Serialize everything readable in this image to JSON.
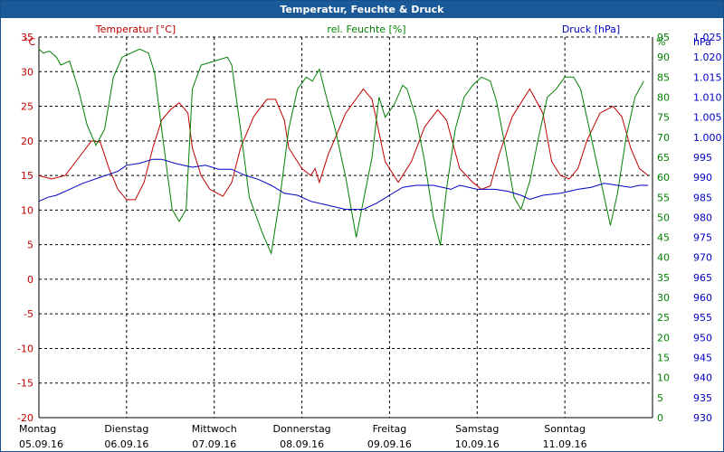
{
  "window": {
    "title": "Temperatur, Feuchte & Druck"
  },
  "chart_data": {
    "type": "line",
    "title": "Temperatur, Feuchte & Druck",
    "grid": true,
    "x": {
      "range": [
        0,
        7
      ],
      "unit": "days from 05.09.16 00:00",
      "tick_labels": [
        {
          "day": "Montag",
          "date": "05.09.16"
        },
        {
          "day": "Dienstag",
          "date": "06.09.16"
        },
        {
          "day": "Mittwoch",
          "date": "07.09.16"
        },
        {
          "day": "Donnerstag",
          "date": "08.09.16"
        },
        {
          "day": "Freitag",
          "date": "09.09.16"
        },
        {
          "day": "Samstag",
          "date": "10.09.16"
        },
        {
          "day": "Sonntag",
          "date": "11.09.16"
        }
      ]
    },
    "axes": {
      "temperature": {
        "label": "Temperatur [°C]",
        "unit": "°C",
        "min": -20,
        "max": 35,
        "step": 5,
        "color": "#c00000"
      },
      "humidity": {
        "label": "rel. Feuchte [%]",
        "unit": "%",
        "min": 0,
        "max": 95,
        "step": 5,
        "color": "#008000"
      },
      "pressure": {
        "label": "Druck [hPa]",
        "unit": "hPa",
        "min": 930,
        "max": 1025,
        "step": 5,
        "color": "#0000c0"
      }
    },
    "series": [
      {
        "name": "Temperatur [°C]",
        "axis": "temperature",
        "color": "#c00000",
        "points": [
          [
            0,
            15
          ],
          [
            0.05,
            14.8
          ],
          [
            0.15,
            14.5
          ],
          [
            0.3,
            15
          ],
          [
            0.45,
            17.5
          ],
          [
            0.6,
            20
          ],
          [
            0.7,
            19.8
          ],
          [
            0.8,
            16
          ],
          [
            0.9,
            13
          ],
          [
            1.0,
            11.5
          ],
          [
            1.1,
            11.5
          ],
          [
            1.2,
            14
          ],
          [
            1.3,
            19
          ],
          [
            1.4,
            23
          ],
          [
            1.5,
            24.5
          ],
          [
            1.6,
            25.5
          ],
          [
            1.7,
            24
          ],
          [
            1.75,
            19
          ],
          [
            1.85,
            15
          ],
          [
            1.95,
            13
          ],
          [
            2.1,
            12
          ],
          [
            2.2,
            14
          ],
          [
            2.3,
            19
          ],
          [
            2.45,
            23.5
          ],
          [
            2.6,
            26
          ],
          [
            2.7,
            26
          ],
          [
            2.8,
            23
          ],
          [
            2.85,
            19
          ],
          [
            3.0,
            16
          ],
          [
            3.1,
            15
          ],
          [
            3.15,
            16
          ],
          [
            3.2,
            14
          ],
          [
            3.3,
            18
          ],
          [
            3.5,
            24
          ],
          [
            3.7,
            27.5
          ],
          [
            3.8,
            26
          ],
          [
            3.95,
            17
          ],
          [
            4.05,
            15
          ],
          [
            4.1,
            14
          ],
          [
            4.25,
            17
          ],
          [
            4.4,
            22
          ],
          [
            4.55,
            24.5
          ],
          [
            4.65,
            23
          ],
          [
            4.8,
            16
          ],
          [
            4.95,
            14
          ],
          [
            5.05,
            13
          ],
          [
            5.15,
            13.5
          ],
          [
            5.25,
            18
          ],
          [
            5.4,
            23.5
          ],
          [
            5.6,
            27.5
          ],
          [
            5.75,
            24
          ],
          [
            5.85,
            17
          ],
          [
            5.95,
            15
          ],
          [
            6.05,
            14.5
          ],
          [
            6.15,
            16
          ],
          [
            6.25,
            20
          ],
          [
            6.4,
            24
          ],
          [
            6.55,
            25
          ],
          [
            6.65,
            23.5
          ],
          [
            6.75,
            19
          ],
          [
            6.85,
            16
          ],
          [
            6.95,
            15
          ]
        ]
      },
      {
        "name": "rel. Feuchte [%]",
        "axis": "humidity",
        "color": "#008000",
        "points": [
          [
            0,
            92
          ],
          [
            0.05,
            91
          ],
          [
            0.12,
            91.5
          ],
          [
            0.2,
            90
          ],
          [
            0.25,
            88
          ],
          [
            0.35,
            89
          ],
          [
            0.45,
            82
          ],
          [
            0.55,
            73
          ],
          [
            0.65,
            68
          ],
          [
            0.75,
            72
          ],
          [
            0.85,
            85
          ],
          [
            0.95,
            90
          ],
          [
            1.05,
            91
          ],
          [
            1.15,
            92
          ],
          [
            1.25,
            91
          ],
          [
            1.32,
            86
          ],
          [
            1.4,
            72
          ],
          [
            1.52,
            52
          ],
          [
            1.6,
            49
          ],
          [
            1.68,
            52
          ],
          [
            1.75,
            82
          ],
          [
            1.85,
            88
          ],
          [
            2.0,
            89
          ],
          [
            2.15,
            90
          ],
          [
            2.2,
            88
          ],
          [
            2.3,
            72
          ],
          [
            2.4,
            55
          ],
          [
            2.55,
            46
          ],
          [
            2.65,
            41
          ],
          [
            2.75,
            55
          ],
          [
            2.85,
            72
          ],
          [
            2.95,
            82
          ],
          [
            3.05,
            85
          ],
          [
            3.12,
            84
          ],
          [
            3.2,
            87
          ],
          [
            3.28,
            80
          ],
          [
            3.38,
            72
          ],
          [
            3.5,
            60
          ],
          [
            3.62,
            45
          ],
          [
            3.7,
            54
          ],
          [
            3.8,
            65
          ],
          [
            3.88,
            80
          ],
          [
            3.95,
            75
          ],
          [
            4.05,
            78
          ],
          [
            4.15,
            83
          ],
          [
            4.2,
            82
          ],
          [
            4.3,
            75
          ],
          [
            4.4,
            64
          ],
          [
            4.5,
            50
          ],
          [
            4.58,
            43
          ],
          [
            4.65,
            57
          ],
          [
            4.75,
            72
          ],
          [
            4.85,
            80
          ],
          [
            4.95,
            83
          ],
          [
            5.05,
            85
          ],
          [
            5.15,
            84
          ],
          [
            5.22,
            79
          ],
          [
            5.3,
            70
          ],
          [
            5.42,
            55
          ],
          [
            5.5,
            52
          ],
          [
            5.6,
            59
          ],
          [
            5.7,
            70
          ],
          [
            5.8,
            80
          ],
          [
            5.9,
            82
          ],
          [
            6.0,
            85
          ],
          [
            6.1,
            85
          ],
          [
            6.18,
            82
          ],
          [
            6.28,
            72
          ],
          [
            6.4,
            60
          ],
          [
            6.52,
            48
          ],
          [
            6.6,
            56
          ],
          [
            6.7,
            70
          ],
          [
            6.8,
            80
          ],
          [
            6.9,
            84
          ]
        ]
      },
      {
        "name": "Druck [hPa]",
        "axis": "pressure",
        "color": "#0000c0",
        "points": [
          [
            0,
            984
          ],
          [
            0.1,
            985
          ],
          [
            0.2,
            985.5
          ],
          [
            0.35,
            987
          ],
          [
            0.5,
            988.5
          ],
          [
            0.7,
            990
          ],
          [
            0.9,
            991.5
          ],
          [
            1.0,
            993
          ],
          [
            1.15,
            993.5
          ],
          [
            1.3,
            994.5
          ],
          [
            1.4,
            994.5
          ],
          [
            1.55,
            993.5
          ],
          [
            1.75,
            992.5
          ],
          [
            1.9,
            993
          ],
          [
            2.05,
            992
          ],
          [
            2.2,
            992
          ],
          [
            2.35,
            990.5
          ],
          [
            2.5,
            989.5
          ],
          [
            2.65,
            988
          ],
          [
            2.8,
            986
          ],
          [
            2.95,
            985.5
          ],
          [
            3.1,
            984
          ],
          [
            3.3,
            983
          ],
          [
            3.5,
            982
          ],
          [
            3.7,
            982
          ],
          [
            3.85,
            983.5
          ],
          [
            4.0,
            985.5
          ],
          [
            4.15,
            987.5
          ],
          [
            4.3,
            988
          ],
          [
            4.5,
            988
          ],
          [
            4.7,
            987
          ],
          [
            4.8,
            988
          ],
          [
            5.0,
            987
          ],
          [
            5.2,
            987
          ],
          [
            5.35,
            986.5
          ],
          [
            5.5,
            985.5
          ],
          [
            5.6,
            984.5
          ],
          [
            5.75,
            985.5
          ],
          [
            5.95,
            986
          ],
          [
            6.15,
            987
          ],
          [
            6.3,
            987.5
          ],
          [
            6.45,
            988.5
          ],
          [
            6.6,
            988
          ],
          [
            6.75,
            987.5
          ],
          [
            6.85,
            988
          ],
          [
            6.95,
            988
          ]
        ]
      }
    ]
  }
}
